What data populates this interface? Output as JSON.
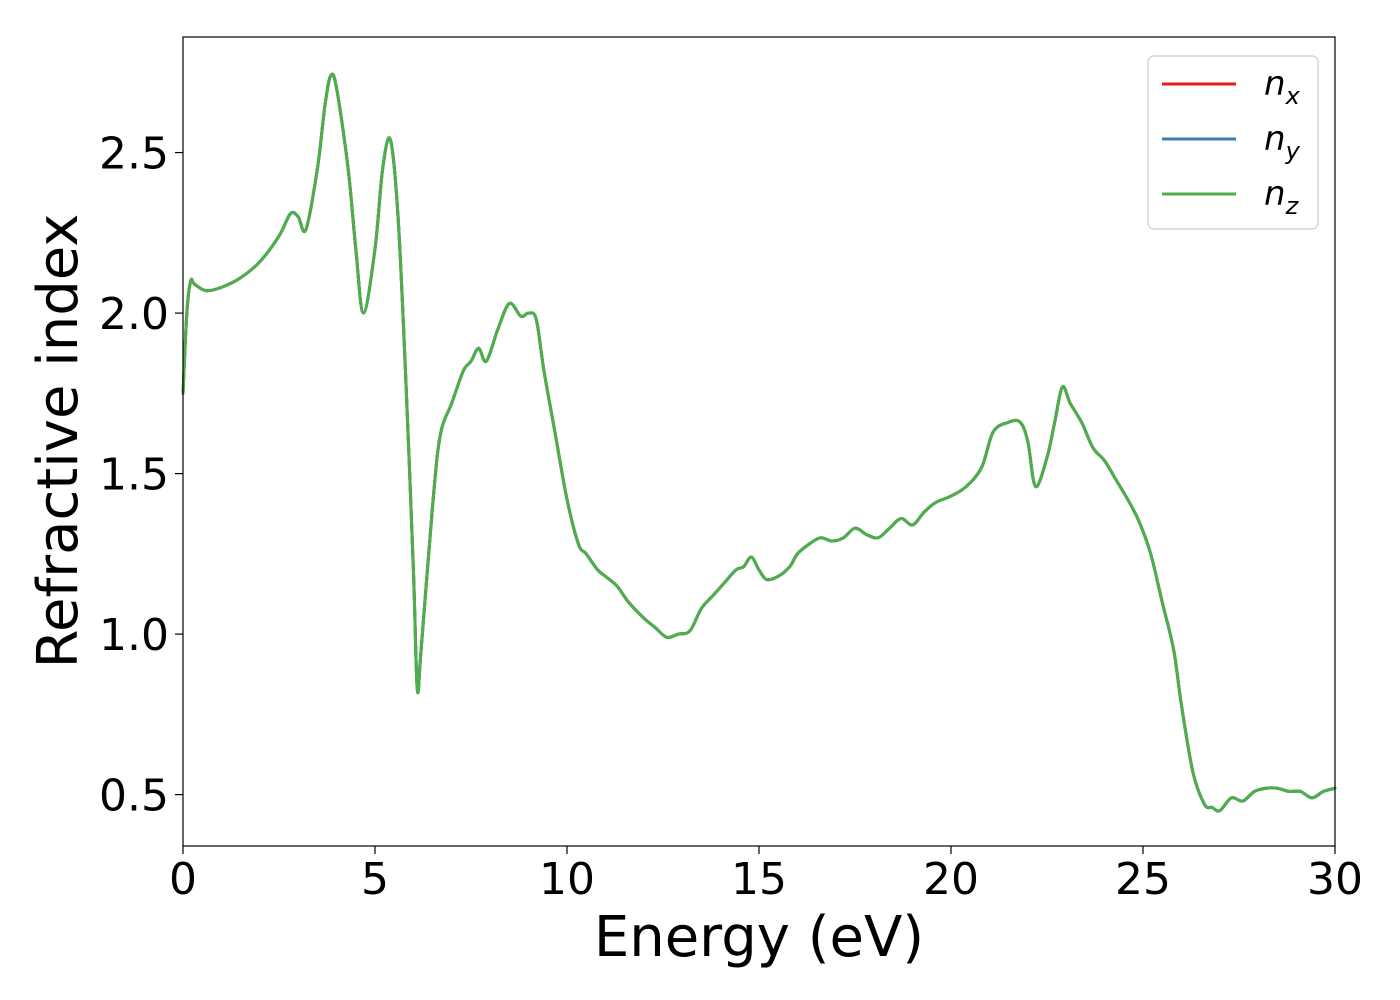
{
  "chart_data": {
    "type": "line",
    "xlabel": "Energy (eV)",
    "ylabel": "Refractive index",
    "xlim": [
      0,
      30
    ],
    "ylim": [
      0.34,
      2.86
    ],
    "xticks": [
      0,
      5,
      10,
      15,
      20,
      25,
      30
    ],
    "xtick_labels": [
      "0",
      "5",
      "10",
      "15",
      "20",
      "25",
      "30"
    ],
    "yticks": [
      0.5,
      1.0,
      1.5,
      2.0,
      2.5
    ],
    "ytick_labels": [
      "0.5",
      "1.0",
      "1.5",
      "2.0",
      "2.5"
    ],
    "grid": false,
    "legend_position": "top-right",
    "x": [
      0,
      0.1,
      0.2,
      0.3,
      0.6,
      1.0,
      1.5,
      2.0,
      2.5,
      2.8,
      3.0,
      3.2,
      3.5,
      3.7,
      3.85,
      4.0,
      4.3,
      4.5,
      4.7,
      5.0,
      5.2,
      5.4,
      5.6,
      5.8,
      6.0,
      6.1,
      6.2,
      6.5,
      6.7,
      7.0,
      7.3,
      7.5,
      7.7,
      7.9,
      8.2,
      8.5,
      8.8,
      9.0,
      9.2,
      9.4,
      9.7,
      10.0,
      10.3,
      10.5,
      10.8,
      11.0,
      11.3,
      11.6,
      12.0,
      12.3,
      12.6,
      12.9,
      13.2,
      13.5,
      13.8,
      14.1,
      14.4,
      14.6,
      14.8,
      15.0,
      15.2,
      15.5,
      15.8,
      16.0,
      16.3,
      16.6,
      16.9,
      17.2,
      17.5,
      17.8,
      18.1,
      18.4,
      18.7,
      19.0,
      19.3,
      19.6,
      20.0,
      20.4,
      20.8,
      21.1,
      21.5,
      21.8,
      22.0,
      22.2,
      22.5,
      22.7,
      22.9,
      23.1,
      23.4,
      23.7,
      24.0,
      24.3,
      24.6,
      24.9,
      25.2,
      25.5,
      25.8,
      26.0,
      26.3,
      26.6,
      26.8,
      27.0,
      27.3,
      27.6,
      27.9,
      28.2,
      28.5,
      28.8,
      29.1,
      29.4,
      29.7,
      30.0
    ],
    "series": [
      {
        "name": "n_x",
        "color": "#e41a1c",
        "values": [
          1.75,
          2.0,
          2.1,
          2.09,
          2.07,
          2.08,
          2.11,
          2.16,
          2.24,
          2.31,
          2.3,
          2.26,
          2.45,
          2.65,
          2.74,
          2.7,
          2.45,
          2.2,
          2.0,
          2.2,
          2.45,
          2.54,
          2.3,
          1.8,
          1.2,
          0.83,
          0.95,
          1.4,
          1.62,
          1.72,
          1.82,
          1.85,
          1.89,
          1.85,
          1.95,
          2.03,
          1.99,
          2.0,
          1.98,
          1.82,
          1.62,
          1.42,
          1.28,
          1.25,
          1.2,
          1.18,
          1.15,
          1.1,
          1.05,
          1.02,
          0.99,
          1.0,
          1.01,
          1.08,
          1.12,
          1.16,
          1.2,
          1.21,
          1.24,
          1.2,
          1.17,
          1.18,
          1.21,
          1.25,
          1.28,
          1.3,
          1.29,
          1.3,
          1.33,
          1.31,
          1.3,
          1.33,
          1.36,
          1.34,
          1.38,
          1.41,
          1.43,
          1.46,
          1.52,
          1.63,
          1.66,
          1.66,
          1.6,
          1.46,
          1.55,
          1.66,
          1.77,
          1.72,
          1.66,
          1.58,
          1.54,
          1.48,
          1.42,
          1.35,
          1.25,
          1.1,
          0.95,
          0.78,
          0.57,
          0.47,
          0.46,
          0.45,
          0.49,
          0.48,
          0.51,
          0.52,
          0.52,
          0.51,
          0.51,
          0.49,
          0.51,
          0.52
        ]
      },
      {
        "name": "n_y",
        "color": "#377eb8",
        "values": [
          1.75,
          2.0,
          2.1,
          2.09,
          2.07,
          2.08,
          2.11,
          2.16,
          2.24,
          2.31,
          2.3,
          2.26,
          2.45,
          2.65,
          2.74,
          2.7,
          2.45,
          2.2,
          2.0,
          2.2,
          2.45,
          2.54,
          2.3,
          1.8,
          1.2,
          0.83,
          0.95,
          1.4,
          1.62,
          1.72,
          1.82,
          1.85,
          1.89,
          1.85,
          1.95,
          2.03,
          1.99,
          2.0,
          1.98,
          1.82,
          1.62,
          1.42,
          1.28,
          1.25,
          1.2,
          1.18,
          1.15,
          1.1,
          1.05,
          1.02,
          0.99,
          1.0,
          1.01,
          1.08,
          1.12,
          1.16,
          1.2,
          1.21,
          1.24,
          1.2,
          1.17,
          1.18,
          1.21,
          1.25,
          1.28,
          1.3,
          1.29,
          1.3,
          1.33,
          1.31,
          1.3,
          1.33,
          1.36,
          1.34,
          1.38,
          1.41,
          1.43,
          1.46,
          1.52,
          1.63,
          1.66,
          1.66,
          1.6,
          1.46,
          1.55,
          1.66,
          1.77,
          1.72,
          1.66,
          1.58,
          1.54,
          1.48,
          1.42,
          1.35,
          1.25,
          1.1,
          0.95,
          0.78,
          0.57,
          0.47,
          0.46,
          0.45,
          0.49,
          0.48,
          0.51,
          0.52,
          0.52,
          0.51,
          0.51,
          0.49,
          0.51,
          0.52
        ]
      },
      {
        "name": "n_z",
        "color": "#4daf4a",
        "values": [
          1.75,
          2.0,
          2.1,
          2.09,
          2.07,
          2.08,
          2.11,
          2.16,
          2.24,
          2.31,
          2.3,
          2.26,
          2.45,
          2.65,
          2.74,
          2.7,
          2.45,
          2.2,
          2.0,
          2.2,
          2.45,
          2.54,
          2.3,
          1.8,
          1.2,
          0.83,
          0.95,
          1.4,
          1.62,
          1.72,
          1.82,
          1.85,
          1.89,
          1.85,
          1.95,
          2.03,
          1.99,
          2.0,
          1.98,
          1.82,
          1.62,
          1.42,
          1.28,
          1.25,
          1.2,
          1.18,
          1.15,
          1.1,
          1.05,
          1.02,
          0.99,
          1.0,
          1.01,
          1.08,
          1.12,
          1.16,
          1.2,
          1.21,
          1.24,
          1.2,
          1.17,
          1.18,
          1.21,
          1.25,
          1.28,
          1.3,
          1.29,
          1.3,
          1.33,
          1.31,
          1.3,
          1.33,
          1.36,
          1.34,
          1.38,
          1.41,
          1.43,
          1.46,
          1.52,
          1.63,
          1.66,
          1.66,
          1.6,
          1.46,
          1.55,
          1.66,
          1.77,
          1.72,
          1.66,
          1.58,
          1.54,
          1.48,
          1.42,
          1.35,
          1.25,
          1.1,
          0.95,
          0.78,
          0.57,
          0.47,
          0.46,
          0.45,
          0.49,
          0.48,
          0.51,
          0.52,
          0.52,
          0.51,
          0.51,
          0.49,
          0.51,
          0.52
        ]
      }
    ],
    "legend": [
      {
        "base": "n",
        "sub": "x",
        "color": "#e41a1c"
      },
      {
        "base": "n",
        "sub": "y",
        "color": "#377eb8"
      },
      {
        "base": "n",
        "sub": "z",
        "color": "#4daf4a"
      }
    ]
  }
}
